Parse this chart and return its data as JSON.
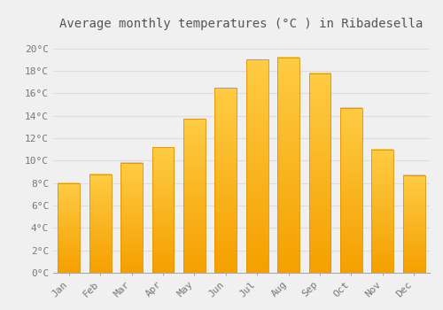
{
  "title": "Average monthly temperatures (°C ) in Ribadesella",
  "months": [
    "Jan",
    "Feb",
    "Mar",
    "Apr",
    "May",
    "Jun",
    "Jul",
    "Aug",
    "Sep",
    "Oct",
    "Nov",
    "Dec"
  ],
  "values": [
    8.0,
    8.8,
    9.8,
    11.2,
    13.7,
    16.5,
    19.0,
    19.2,
    17.8,
    14.7,
    11.0,
    8.7
  ],
  "bar_color_top": "#FFCC44",
  "bar_color_bottom": "#F5A000",
  "bar_edge_color": "#E09000",
  "background_color": "#F0F0F0",
  "grid_color": "#DDDDDD",
  "ylim": [
    0,
    21
  ],
  "yticks": [
    0,
    2,
    4,
    6,
    8,
    10,
    12,
    14,
    16,
    18,
    20
  ],
  "title_fontsize": 10,
  "tick_fontsize": 8,
  "tick_font_color": "#777777",
  "title_color": "#555555"
}
